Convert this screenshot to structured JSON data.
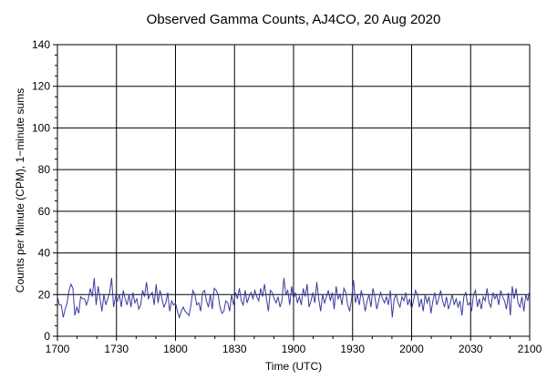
{
  "chart_data": {
    "type": "line",
    "title": "Observed Gamma Counts, AJ4CO, 20 Aug 2020",
    "xlabel": "Time (UTC)",
    "ylabel": "Counts per Minute (CPM), 1−minute sums",
    "xlim": [
      1700,
      2100
    ],
    "ylim": [
      0,
      140
    ],
    "x_ticks": [
      {
        "label": "1700",
        "minutes": 0
      },
      {
        "label": "1730",
        "minutes": 30
      },
      {
        "label": "1800",
        "minutes": 60
      },
      {
        "label": "1830",
        "minutes": 90
      },
      {
        "label": "1900",
        "minutes": 120
      },
      {
        "label": "1930",
        "minutes": 150
      },
      {
        "label": "2000",
        "minutes": 180
      },
      {
        "label": "2030",
        "minutes": 210
      },
      {
        "label": "2100",
        "minutes": 240
      }
    ],
    "y_ticks": [
      0,
      20,
      40,
      60,
      80,
      100,
      120,
      140
    ],
    "grid": true,
    "line_color": "#3a3aa0",
    "series": [
      {
        "name": "",
        "values": [
          19,
          15,
          15,
          9,
          13,
          16,
          22,
          25,
          23,
          10,
          14,
          11,
          19,
          18,
          18,
          15,
          18,
          23,
          19,
          28,
          15,
          24,
          18,
          12,
          20,
          15,
          18,
          21,
          28,
          14,
          19,
          17,
          20,
          14,
          22,
          18,
          15,
          20,
          14,
          21,
          16,
          18,
          13,
          15,
          22,
          19,
          26,
          18,
          20,
          21,
          15,
          25,
          16,
          22,
          18,
          14,
          16,
          21,
          12,
          17,
          15,
          16,
          12,
          9,
          12,
          14,
          12,
          11,
          10,
          15,
          22,
          20,
          15,
          16,
          12,
          21,
          22,
          17,
          14,
          20,
          13,
          23,
          22,
          20,
          14,
          11,
          12,
          17,
          16,
          12,
          20,
          15,
          21,
          18,
          23,
          17,
          15,
          22,
          16,
          19,
          21,
          18,
          22,
          19,
          17,
          23,
          19,
          25,
          18,
          12,
          22,
          21,
          18,
          16,
          19,
          14,
          17,
          28,
          20,
          22,
          15,
          24,
          18,
          21,
          16,
          19,
          15,
          23,
          19,
          25,
          14,
          17,
          21,
          16,
          26,
          18,
          12,
          20,
          16,
          19,
          22,
          17,
          21,
          13,
          24,
          18,
          20,
          15,
          23,
          21,
          15,
          12,
          18,
          27,
          16,
          20,
          15,
          22,
          18,
          12,
          17,
          20,
          14,
          23,
          19,
          13,
          17,
          21,
          18,
          16,
          19,
          15,
          22,
          9,
          18,
          20,
          16,
          14,
          19,
          17,
          21,
          15,
          18,
          13,
          17,
          22,
          20,
          14,
          18,
          12,
          20,
          16,
          19,
          11,
          17,
          21,
          15,
          18,
          22,
          17,
          14,
          19,
          13,
          16,
          20,
          15,
          18,
          14,
          17,
          10,
          19,
          21,
          15,
          16,
          12,
          20,
          22,
          14,
          18,
          13,
          19,
          17,
          23,
          16,
          14,
          21,
          18,
          20,
          15,
          22,
          19,
          17,
          13,
          21,
          10,
          24,
          18,
          23,
          16,
          14,
          19,
          12,
          20,
          17,
          22
        ]
      }
    ]
  }
}
